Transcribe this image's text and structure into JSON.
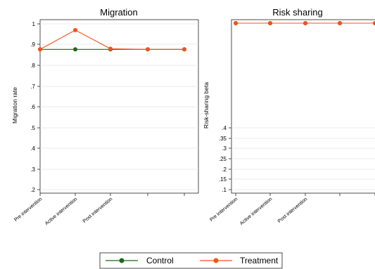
{
  "legend": {
    "items": [
      {
        "label": "Control",
        "color": "#1a6b1a"
      },
      {
        "label": "Treatment",
        "color": "#f4511e"
      }
    ]
  },
  "chart_data": [
    {
      "type": "line",
      "title": "Migration",
      "xlabel": "",
      "ylabel": "Migration rate",
      "x_ticks": [
        "Pre intervention",
        "Active intervention",
        "Post intervention",
        "",
        ""
      ],
      "y_ticks": [
        "1",
        ".9",
        ".8",
        ".7",
        ".6",
        ".5",
        ".4",
        ".3",
        ".2"
      ],
      "ylim": [
        0.2,
        1.0
      ],
      "grid": true,
      "series": [
        {
          "name": "Control",
          "values": [
            0.877,
            0.877,
            0.877,
            0.877,
            0.877
          ]
        },
        {
          "name": "Treatment",
          "values": [
            0.877,
            0.97,
            0.88,
            0.877,
            0.877
          ]
        }
      ]
    },
    {
      "type": "line",
      "title": "Risk sharing",
      "xlabel": "",
      "ylabel": "Risk-sharing beta",
      "x_ticks": [
        "Pre intervention",
        "Active intervention",
        "Post intervention",
        "",
        ""
      ],
      "y_ticks": [
        ".4",
        ".35",
        ".3",
        ".25",
        ".2",
        ".15",
        ".1"
      ],
      "ylim": [
        0.1,
        0.4
      ],
      "grid": true,
      "series": [
        {
          "name": "Control",
          "values": [
            1.0,
            0.993,
            1.0,
            1.0,
            1.0
          ]
        },
        {
          "name": "Treatment",
          "values": [
            1.0,
            0.988,
            1.0,
            1.0,
            1.0
          ]
        }
      ]
    }
  ]
}
